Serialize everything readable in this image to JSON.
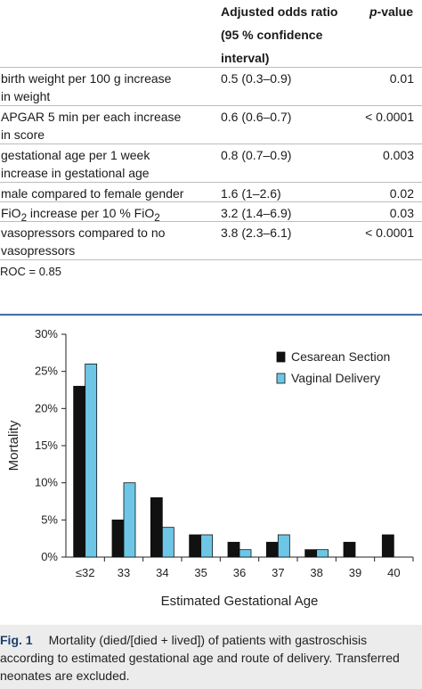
{
  "table": {
    "headers": {
      "col2_lines": [
        "Adjusted odds ratio",
        "(95 % confidence",
        "interval)"
      ],
      "col3_prefix": "p",
      "col3_suffix": "-value"
    },
    "rows": [
      {
        "label_lines": [
          "birth weight per 100 g increase",
          "in weight"
        ],
        "or": "0.5 (0.3–0.9)",
        "p": "0.01"
      },
      {
        "label_lines": [
          "APGAR 5 min per each increase",
          "in score"
        ],
        "or": "0.6 (0.6–0.7)",
        "p": "< 0.0001"
      },
      {
        "label_lines": [
          "gestational age per 1 week",
          "increase in gestational age"
        ],
        "or": "0.8 (0.7–0.9)",
        "p": "0.003"
      },
      {
        "label_lines": [
          "male compared to female gender"
        ],
        "or": "1.6 (1–2.6)",
        "p": "0.02"
      },
      {
        "label_lines": [
          "FiO",
          "2",
          " increase per 10 % FiO",
          "2"
        ],
        "or": "3.2 (1.4–6.9)",
        "p": "0.03"
      },
      {
        "label_lines": [
          "vasopressors compared to no",
          "vasopressors"
        ],
        "or": "3.8 (2.3–6.1)",
        "p": "< 0.0001"
      }
    ],
    "roc": "ROC = 0.85"
  },
  "chart_data": {
    "type": "bar",
    "categories": [
      "≤32",
      "33",
      "34",
      "35",
      "36",
      "37",
      "38",
      "39",
      "40"
    ],
    "series": [
      {
        "name": "Cesarean Section",
        "values": [
          23,
          5,
          8,
          3,
          2,
          2,
          1,
          2,
          3
        ],
        "color": "#111111"
      },
      {
        "name": "Vaginal Delivery",
        "values": [
          26,
          10,
          4,
          3,
          1,
          3,
          1,
          null,
          null
        ],
        "color": "#6ec6e6"
      }
    ],
    "ylim": [
      0,
      30
    ],
    "yticks": [
      "0%",
      "5%",
      "10%",
      "15%",
      "20%",
      "25%",
      "30%"
    ],
    "xlabel": "Estimated Gestational Age",
    "ylabel": "Mortality",
    "legend": "top-right"
  },
  "caption": {
    "figno": "Fig. 1",
    "lines": [
      "Mortality (died/[died + lived]) of patients with gastroschisis",
      "according to estimated gestational age and route of delivery. Transferred",
      "neonates are excluded."
    ]
  }
}
